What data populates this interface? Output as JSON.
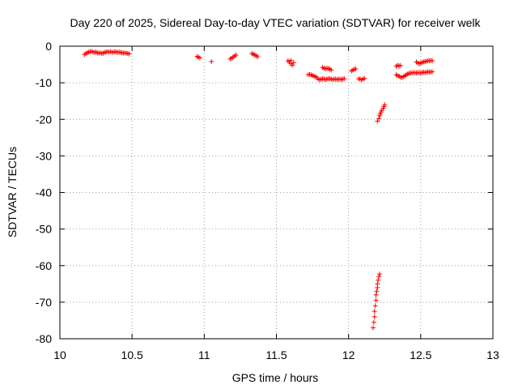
{
  "chart_data": {
    "type": "scatter",
    "title": "Day 220 of 2025, Sidereal Day-to-day VTEC variation (SDTVAR) for receiver welk",
    "xlabel": "GPS time / hours",
    "ylabel": "SDTVAR / TECUs",
    "xlim": [
      10,
      13
    ],
    "ylim": [
      -80,
      0
    ],
    "x_ticks": [
      10,
      10.5,
      11,
      11.5,
      12,
      12.5,
      13
    ],
    "x_tick_labels": [
      "10",
      "10.5",
      "11",
      "11.5",
      "12",
      "12.5",
      "13"
    ],
    "y_ticks": [
      0,
      -10,
      -20,
      -30,
      -40,
      -50,
      -60,
      -70,
      -80
    ],
    "y_tick_labels": [
      "0",
      "-10",
      "-20",
      "-30",
      "-40",
      "-50",
      "-60",
      "-70",
      "-80"
    ],
    "grid": true,
    "grid_style": "dotted",
    "marker": "plus",
    "marker_color": "#ff0000",
    "series": [
      {
        "points": [
          [
            10.17,
            -2.3
          ],
          [
            10.18,
            -2.0
          ],
          [
            10.19,
            -1.8
          ],
          [
            10.2,
            -1.6
          ],
          [
            10.21,
            -1.5
          ],
          [
            10.22,
            -1.4
          ],
          [
            10.23,
            -1.6
          ],
          [
            10.24,
            -1.7
          ],
          [
            10.25,
            -1.6
          ],
          [
            10.26,
            -1.8
          ],
          [
            10.27,
            -1.9
          ],
          [
            10.28,
            -1.8
          ],
          [
            10.29,
            -2.0
          ],
          [
            10.3,
            -1.9
          ],
          [
            10.31,
            -1.7
          ],
          [
            10.32,
            -1.6
          ],
          [
            10.33,
            -1.5
          ],
          [
            10.34,
            -1.6
          ],
          [
            10.35,
            -1.5
          ],
          [
            10.36,
            -1.6
          ],
          [
            10.37,
            -1.7
          ],
          [
            10.38,
            -1.5
          ],
          [
            10.39,
            -1.6
          ],
          [
            10.4,
            -1.7
          ],
          [
            10.41,
            -1.6
          ],
          [
            10.42,
            -1.7
          ],
          [
            10.43,
            -1.8
          ],
          [
            10.44,
            -1.9
          ],
          [
            10.45,
            -1.8
          ],
          [
            10.46,
            -1.9
          ],
          [
            10.47,
            -2.0
          ],
          [
            10.48,
            -2.1
          ],
          [
            10.95,
            -2.8
          ],
          [
            10.96,
            -3.0
          ],
          [
            10.97,
            -3.2
          ],
          [
            11.05,
            -4.2
          ],
          [
            11.18,
            -3.5
          ],
          [
            11.19,
            -3.3
          ],
          [
            11.2,
            -3.0
          ],
          [
            11.21,
            -2.7
          ],
          [
            11.22,
            -2.4
          ],
          [
            11.33,
            -2.0
          ],
          [
            11.34,
            -2.2
          ],
          [
            11.35,
            -2.4
          ],
          [
            11.36,
            -2.6
          ],
          [
            11.37,
            -2.9
          ],
          [
            11.58,
            -4.0
          ],
          [
            11.59,
            -4.3
          ],
          [
            11.6,
            -3.9
          ],
          [
            11.6,
            -4.8
          ],
          [
            11.61,
            -5.2
          ],
          [
            11.62,
            -4.5
          ],
          [
            11.72,
            -7.8
          ],
          [
            11.73,
            -7.7
          ],
          [
            11.74,
            -7.8
          ],
          [
            11.75,
            -8.0
          ],
          [
            11.76,
            -8.2
          ],
          [
            11.77,
            -8.3
          ],
          [
            11.78,
            -8.6
          ],
          [
            11.79,
            -9.0
          ],
          [
            11.8,
            -9.2
          ],
          [
            11.81,
            -9.0
          ],
          [
            11.82,
            -8.9
          ],
          [
            11.83,
            -9.0
          ],
          [
            11.84,
            -9.1
          ],
          [
            11.85,
            -9.0
          ],
          [
            11.86,
            -8.9
          ],
          [
            11.87,
            -8.9
          ],
          [
            11.88,
            -9.0
          ],
          [
            11.89,
            -9.1
          ],
          [
            11.9,
            -9.0
          ],
          [
            11.91,
            -9.0
          ],
          [
            11.92,
            -9.1
          ],
          [
            11.93,
            -9.0
          ],
          [
            11.94,
            -9.0
          ],
          [
            11.95,
            -9.1
          ],
          [
            11.96,
            -9.0
          ],
          [
            11.97,
            -8.9
          ],
          [
            11.82,
            -5.8
          ],
          [
            11.83,
            -6.0
          ],
          [
            11.84,
            -6.2
          ],
          [
            11.85,
            -6.0
          ],
          [
            11.86,
            -6.1
          ],
          [
            11.87,
            -6.3
          ],
          [
            11.88,
            -6.5
          ],
          [
            12.02,
            -6.8
          ],
          [
            12.03,
            -6.5
          ],
          [
            12.04,
            -6.3
          ],
          [
            12.05,
            -6.2
          ],
          [
            12.07,
            -8.9
          ],
          [
            12.08,
            -9.0
          ],
          [
            12.09,
            -9.2
          ],
          [
            12.1,
            -9.0
          ],
          [
            12.11,
            -8.8
          ],
          [
            12.2,
            -20.5
          ],
          [
            12.21,
            -19.8
          ],
          [
            12.215,
            -19.0
          ],
          [
            12.22,
            -18.5
          ],
          [
            12.225,
            -18.0
          ],
          [
            12.23,
            -17.5
          ],
          [
            12.24,
            -17.0
          ],
          [
            12.245,
            -16.5
          ],
          [
            12.25,
            -16.0
          ],
          [
            12.17,
            -77.0
          ],
          [
            12.175,
            -75.5
          ],
          [
            12.18,
            -74.0
          ],
          [
            12.18,
            -72.5
          ],
          [
            12.185,
            -71.0
          ],
          [
            12.19,
            -69.5
          ],
          [
            12.19,
            -68.0
          ],
          [
            12.195,
            -67.0
          ],
          [
            12.2,
            -66.0
          ],
          [
            12.2,
            -65.0
          ],
          [
            12.205,
            -64.0
          ],
          [
            12.21,
            -63.0
          ],
          [
            12.215,
            -62.3
          ],
          [
            12.33,
            -5.5
          ],
          [
            12.34,
            -5.2
          ],
          [
            12.35,
            -5.4
          ],
          [
            12.36,
            -5.3
          ],
          [
            12.33,
            -7.8
          ],
          [
            12.34,
            -8.0
          ],
          [
            12.35,
            -8.2
          ],
          [
            12.36,
            -8.5
          ],
          [
            12.37,
            -8.6
          ],
          [
            12.38,
            -8.3
          ],
          [
            12.39,
            -8.1
          ],
          [
            12.4,
            -7.8
          ],
          [
            12.41,
            -7.6
          ],
          [
            12.42,
            -7.4
          ],
          [
            12.43,
            -7.3
          ],
          [
            12.44,
            -7.3
          ],
          [
            12.45,
            -7.2
          ],
          [
            12.46,
            -7.3
          ],
          [
            12.47,
            -7.3
          ],
          [
            12.48,
            -7.2
          ],
          [
            12.49,
            -7.2
          ],
          [
            12.5,
            -7.3
          ],
          [
            12.51,
            -7.2
          ],
          [
            12.52,
            -7.1
          ],
          [
            12.53,
            -7.2
          ],
          [
            12.54,
            -7.1
          ],
          [
            12.55,
            -7.0
          ],
          [
            12.56,
            -7.1
          ],
          [
            12.57,
            -7.0
          ],
          [
            12.58,
            -7.0
          ],
          [
            12.47,
            -4.3
          ],
          [
            12.48,
            -4.6
          ],
          [
            12.49,
            -4.8
          ],
          [
            12.5,
            -4.6
          ],
          [
            12.51,
            -4.4
          ],
          [
            12.52,
            -4.3
          ],
          [
            12.53,
            -4.2
          ],
          [
            12.54,
            -4.1
          ],
          [
            12.55,
            -4.0
          ],
          [
            12.56,
            -4.0
          ],
          [
            12.57,
            -3.9
          ],
          [
            12.58,
            -4.0
          ]
        ]
      }
    ]
  }
}
